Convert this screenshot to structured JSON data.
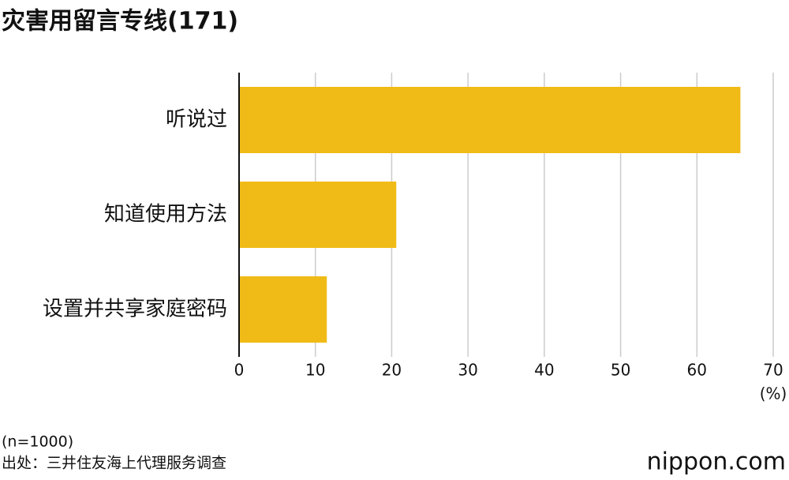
{
  "chart_data": {
    "type": "barh",
    "title": "灾害用留言专线(171)",
    "categories": [
      "听说过",
      "知道使用方法",
      "设置并共享家庭密码"
    ],
    "values": [
      65.7,
      20.6,
      11.5
    ],
    "color": "#f0bb16",
    "xlim": [
      0,
      70
    ],
    "xticks": [
      0,
      10,
      20,
      30,
      40,
      50,
      60,
      70
    ],
    "grid": true,
    "x_unit": "(%)",
    "note": "(n=1000)",
    "source": "出处：三井住友海上代理服务调查",
    "logo": "nippon.com"
  }
}
